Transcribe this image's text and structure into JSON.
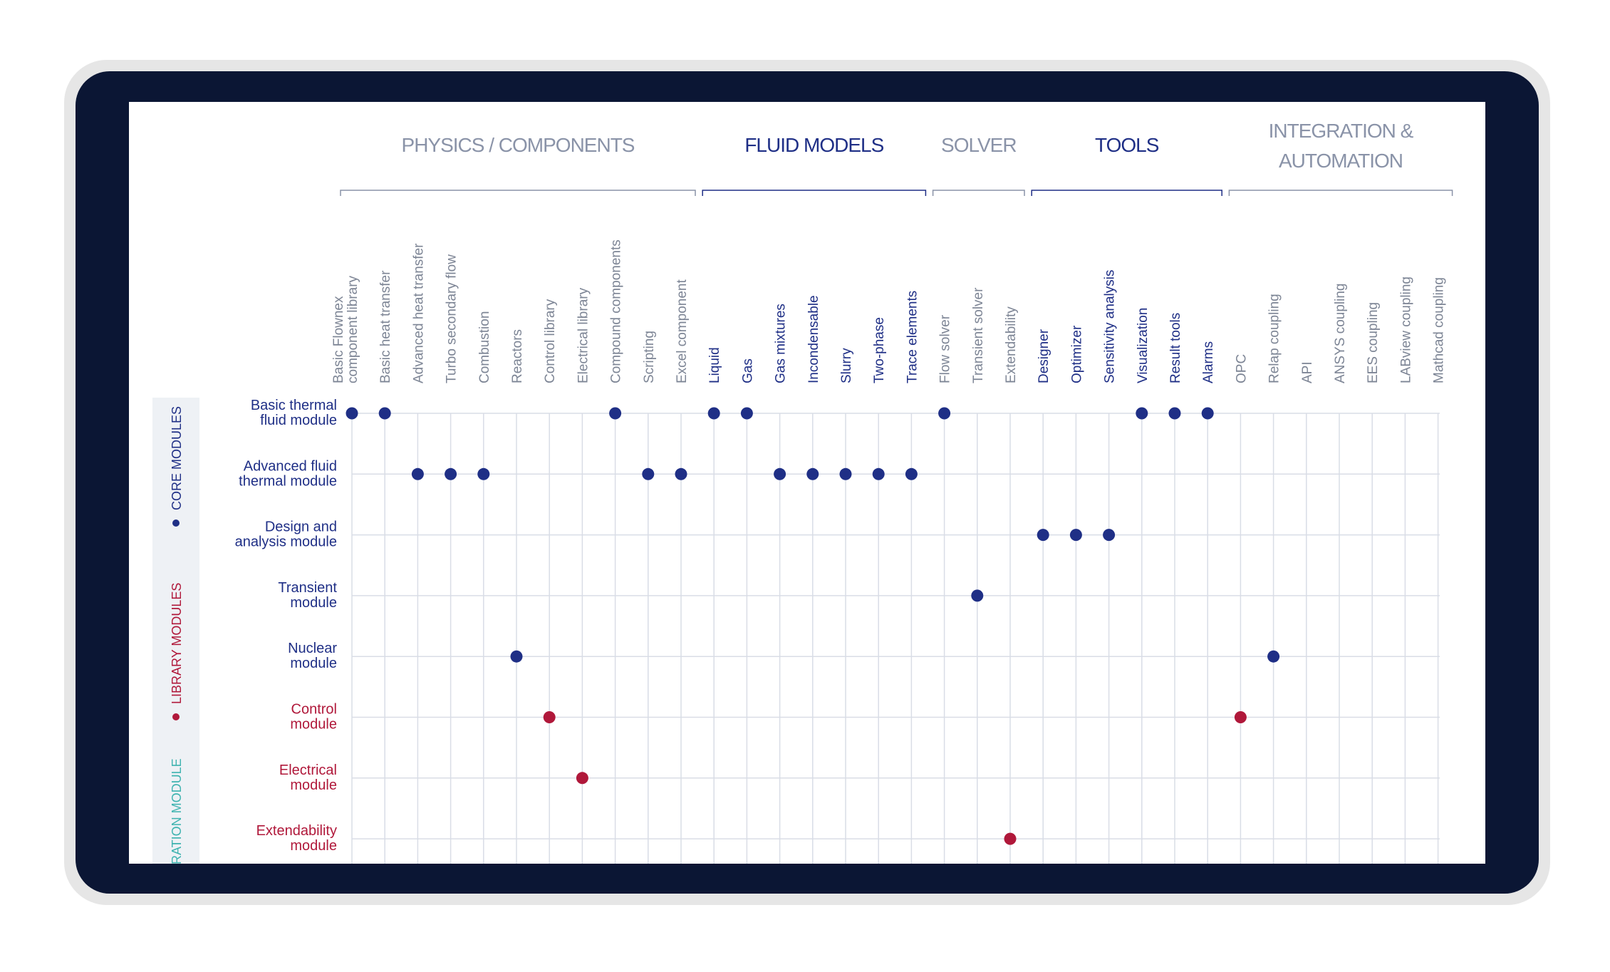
{
  "colors": {
    "bezel": "#e6e6e6",
    "device": "#0b1634",
    "screen": "#ffffff",
    "grid": "#d9dde6",
    "core": "#1f2f86",
    "library": "#b0183a",
    "integration": "#3fb3b0",
    "group_gray": "#8a93a8",
    "label_gray": "#7d8595"
  },
  "groups": [
    {
      "label": "PHYSICS / COMPONENTS",
      "start": 0,
      "end": 10,
      "style": "gray"
    },
    {
      "label": "FLUID MODELS",
      "start": 11,
      "end": 17,
      "style": "blue"
    },
    {
      "label": "SOLVER",
      "start": 18,
      "end": 20,
      "style": "gray"
    },
    {
      "label": "TOOLS",
      "start": 21,
      "end": 26,
      "style": "blue"
    },
    {
      "label": "INTEGRATION & AUTOMATION",
      "lines": [
        "INTEGRATION &",
        "AUTOMATION"
      ],
      "start": 27,
      "end": 33,
      "style": "gray"
    }
  ],
  "columns": [
    {
      "label": "Basic Flownex component library",
      "lines": [
        "Basic Flownex",
        "component library"
      ],
      "style": "gray"
    },
    {
      "label": "Basic heat transfer",
      "style": "gray"
    },
    {
      "label": "Advanced heat transfer",
      "style": "gray"
    },
    {
      "label": "Turbo secondary flow",
      "style": "gray"
    },
    {
      "label": "Combustion",
      "style": "gray"
    },
    {
      "label": "Reactors",
      "style": "gray"
    },
    {
      "label": "Control library",
      "style": "gray"
    },
    {
      "label": "Electrical library",
      "style": "gray"
    },
    {
      "label": "Compound components",
      "style": "gray"
    },
    {
      "label": "Scripting",
      "style": "gray"
    },
    {
      "label": "Excel component",
      "style": "gray"
    },
    {
      "label": "Liquid",
      "style": "blue"
    },
    {
      "label": "Gas",
      "style": "blue"
    },
    {
      "label": "Gas mixtures",
      "style": "blue"
    },
    {
      "label": "Incondensable",
      "style": "blue"
    },
    {
      "label": "Slurry",
      "style": "blue"
    },
    {
      "label": "Two-phase",
      "style": "blue"
    },
    {
      "label": "Trace elements",
      "style": "blue"
    },
    {
      "label": "Flow solver",
      "style": "gray"
    },
    {
      "label": "Transient solver",
      "style": "gray"
    },
    {
      "label": "Extendability",
      "style": "gray"
    },
    {
      "label": "Designer",
      "style": "blue"
    },
    {
      "label": "Optimizer",
      "style": "blue"
    },
    {
      "label": "Sensitivity analysis",
      "style": "blue"
    },
    {
      "label": "Visualization",
      "style": "blue"
    },
    {
      "label": "Result tools",
      "style": "blue"
    },
    {
      "label": "Alarms",
      "style": "blue"
    },
    {
      "label": "OPC",
      "style": "gray"
    },
    {
      "label": "Relap coupling",
      "style": "gray"
    },
    {
      "label": "API",
      "style": "gray"
    },
    {
      "label": "ANSYS coupling",
      "style": "gray"
    },
    {
      "label": "EES coupling",
      "style": "gray"
    },
    {
      "label": "LABview coupling",
      "style": "gray"
    },
    {
      "label": "Mathcad coupling",
      "style": "gray"
    }
  ],
  "rows": [
    {
      "label": "Basic thermal fluid module",
      "lines": [
        "Basic thermal",
        "fluid module"
      ],
      "category": "core",
      "marks": [
        0,
        1,
        8,
        11,
        12,
        18,
        24,
        25,
        26
      ]
    },
    {
      "label": "Advanced fluid thermal module",
      "lines": [
        "Advanced fluid",
        "thermal module"
      ],
      "category": "core",
      "marks": [
        2,
        3,
        4,
        9,
        10,
        13,
        14,
        15,
        16,
        17
      ]
    },
    {
      "label": "Design and analysis module",
      "lines": [
        "Design and",
        "analysis module"
      ],
      "category": "core",
      "marks": [
        21,
        22,
        23
      ]
    },
    {
      "label": "Transient module",
      "lines": [
        "Transient",
        "module"
      ],
      "category": "core",
      "marks": [
        19
      ]
    },
    {
      "label": "Nuclear module",
      "lines": [
        "Nuclear",
        "module"
      ],
      "category": "core",
      "marks": [
        5,
        28
      ]
    },
    {
      "label": "Control module",
      "lines": [
        "Control",
        "module"
      ],
      "category": "library",
      "marks": [
        6,
        27
      ]
    },
    {
      "label": "Electrical module",
      "lines": [
        "Electrical",
        "module"
      ],
      "category": "library",
      "marks": [
        7
      ]
    },
    {
      "label": "Extendability module",
      "lines": [
        "Extendability",
        "module"
      ],
      "category": "library",
      "marks": [
        20
      ]
    }
  ],
  "legend": [
    {
      "label": "CORE MODULES",
      "category": "core"
    },
    {
      "label": "LIBRARY MODULES",
      "category": "library"
    },
    {
      "label": "INTEGRATION MODULE",
      "category": "integration"
    }
  ]
}
